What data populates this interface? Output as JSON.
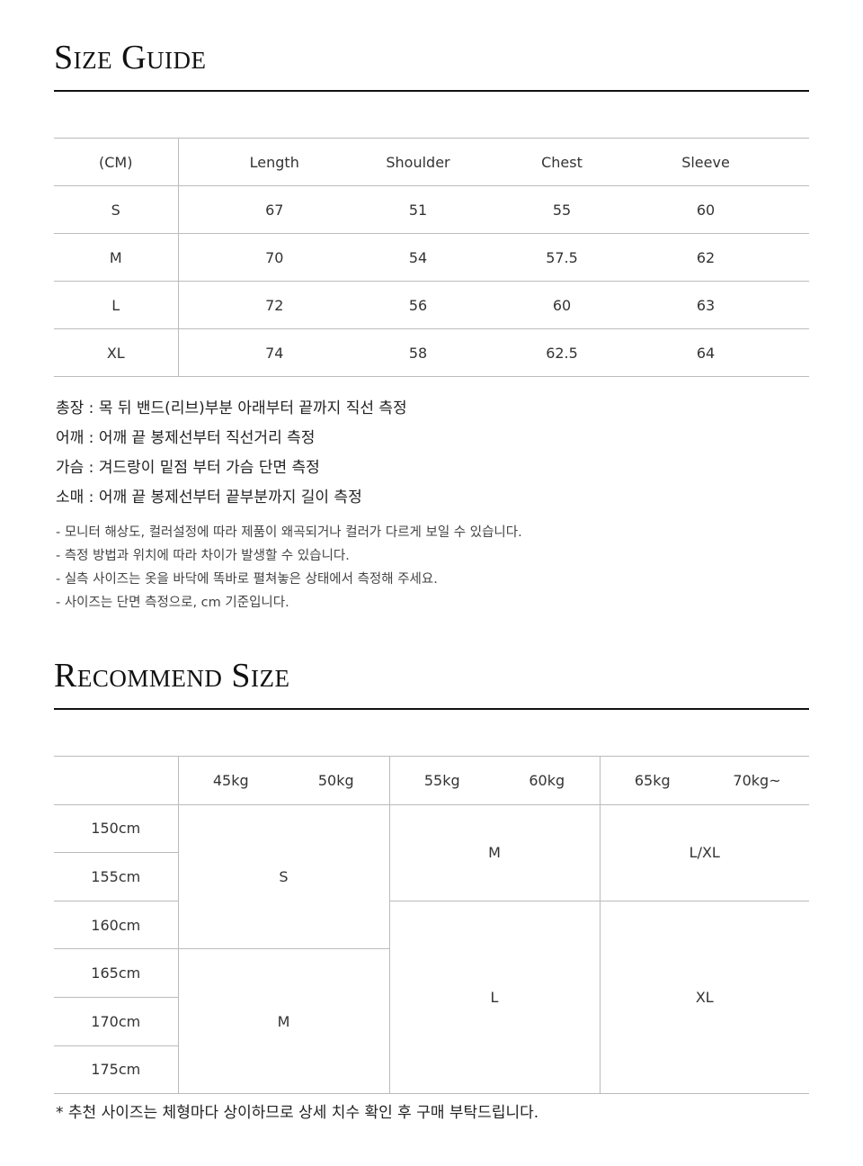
{
  "size_guide": {
    "title": "Size Guide",
    "headers": [
      "(CM)",
      "Length",
      "Shoulder",
      "Chest",
      "Sleeve"
    ],
    "rows": [
      [
        "S",
        "67",
        "51",
        "55",
        "60"
      ],
      [
        "M",
        "70",
        "54",
        "57.5",
        "62"
      ],
      [
        "L",
        "72",
        "56",
        "60",
        "63"
      ],
      [
        "XL",
        "74",
        "58",
        "62.5",
        "64"
      ]
    ],
    "measure_notes": [
      "총장 : 목 뒤 밴드(리브)부분 아래부터 끝까지 직선 측정",
      "어깨 : 어깨 끝 봉제선부터 직선거리 측정",
      "가슴 : 겨드랑이 밑점 부터 가슴 단면 측정",
      "소매 : 어깨 끝 봉제선부터 끝부분까지 길이 측정"
    ],
    "disclaimers": [
      "- 모니터 해상도, 컬러설정에 따라 제품이 왜곡되거나 컬러가 다르게 보일 수 있습니다.",
      "- 측정 방법과 위치에 따라 차이가 발생할 수 있습니다.",
      "- 실측 사이즈는 옷을 바닥에 똑바로 펼쳐놓은 상태에서 측정해 주세요.",
      "- 사이즈는 단면 측정으로, cm 기준입니다."
    ]
  },
  "recommend": {
    "title": "Recommend Size",
    "weights": [
      "45kg",
      "50kg",
      "55kg",
      "60kg",
      "65kg",
      "70kg~"
    ],
    "heights": [
      "150cm",
      "155cm",
      "160cm",
      "165cm",
      "170cm",
      "175cm"
    ],
    "cells": {
      "g1_top": "S",
      "g1_bottom": "M",
      "g2_top": "M",
      "g2_bottom": "L",
      "g3_top": "L/XL",
      "g3_bottom": "XL"
    },
    "footnote": "* 추천 사이즈는 체형마다 상이하므로 상세 치수 확인 후 구매 부탁드립니다."
  }
}
